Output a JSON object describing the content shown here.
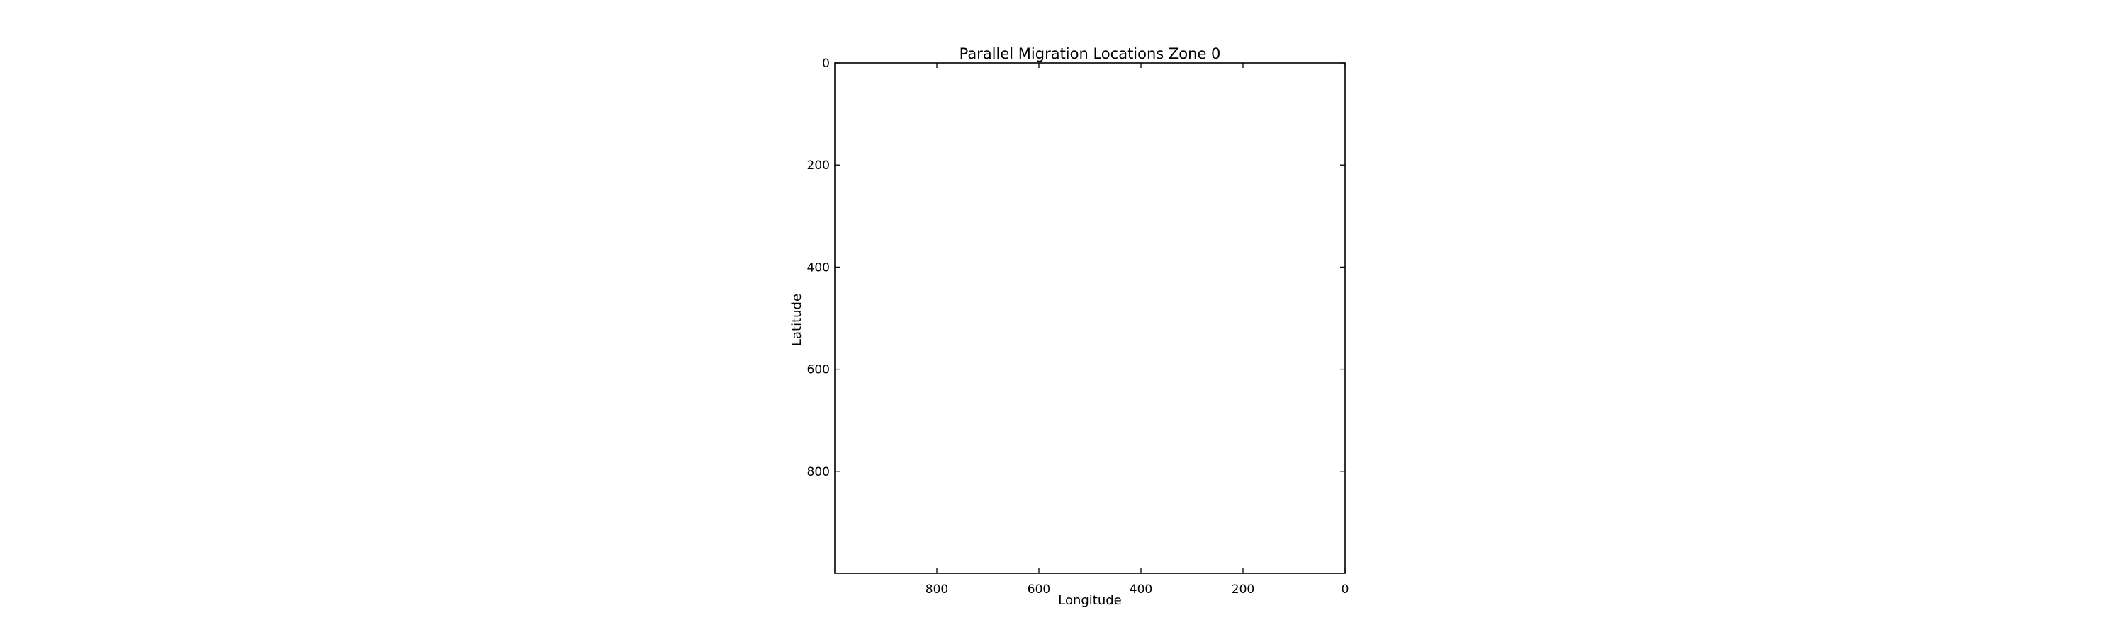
{
  "chart_data": {
    "type": "scatter",
    "title": "Parallel Migration Locations Zone 0",
    "xlabel": "Longitude",
    "ylabel": "Latitude",
    "xlim": [
      1000,
      0
    ],
    "ylim": [
      1000,
      0
    ],
    "xticks": [
      800,
      600,
      400,
      200,
      0
    ],
    "yticks": [
      0,
      200,
      400,
      600,
      800
    ],
    "grid": false,
    "legend": "none",
    "points": []
  }
}
